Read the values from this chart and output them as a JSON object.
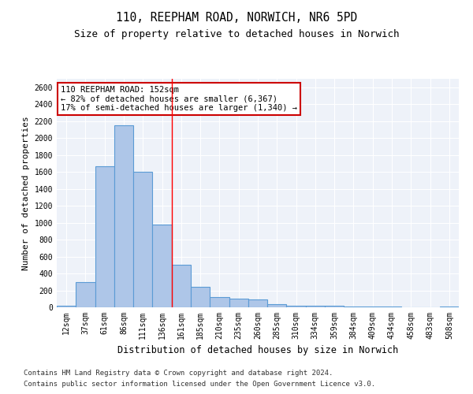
{
  "title": "110, REEPHAM ROAD, NORWICH, NR6 5PD",
  "subtitle": "Size of property relative to detached houses in Norwich",
  "xlabel": "Distribution of detached houses by size in Norwich",
  "ylabel": "Number of detached properties",
  "categories": [
    "12sqm",
    "37sqm",
    "61sqm",
    "86sqm",
    "111sqm",
    "136sqm",
    "161sqm",
    "185sqm",
    "210sqm",
    "235sqm",
    "260sqm",
    "285sqm",
    "310sqm",
    "334sqm",
    "359sqm",
    "384sqm",
    "409sqm",
    "434sqm",
    "458sqm",
    "483sqm",
    "508sqm"
  ],
  "values": [
    20,
    300,
    1670,
    2150,
    1600,
    975,
    500,
    245,
    125,
    105,
    95,
    35,
    20,
    15,
    15,
    8,
    5,
    5,
    3,
    2,
    5
  ],
  "bar_color": "#aec6e8",
  "bar_edge_color": "#5b9bd5",
  "bar_edge_width": 0.8,
  "red_line_x": 5.5,
  "annotation_text": "110 REEPHAM ROAD: 152sqm\n← 82% of detached houses are smaller (6,367)\n17% of semi-detached houses are larger (1,340) →",
  "annotation_box_color": "#ffffff",
  "annotation_box_edge_color": "#cc0000",
  "ylim": [
    0,
    2700
  ],
  "yticks": [
    0,
    200,
    400,
    600,
    800,
    1000,
    1200,
    1400,
    1600,
    1800,
    2000,
    2200,
    2400,
    2600
  ],
  "background_color": "#eef2f9",
  "footer_line1": "Contains HM Land Registry data © Crown copyright and database right 2024.",
  "footer_line2": "Contains public sector information licensed under the Open Government Licence v3.0.",
  "title_fontsize": 10.5,
  "subtitle_fontsize": 9,
  "xlabel_fontsize": 8.5,
  "ylabel_fontsize": 8,
  "tick_fontsize": 7,
  "annotation_fontsize": 7.5,
  "footer_fontsize": 6.5
}
